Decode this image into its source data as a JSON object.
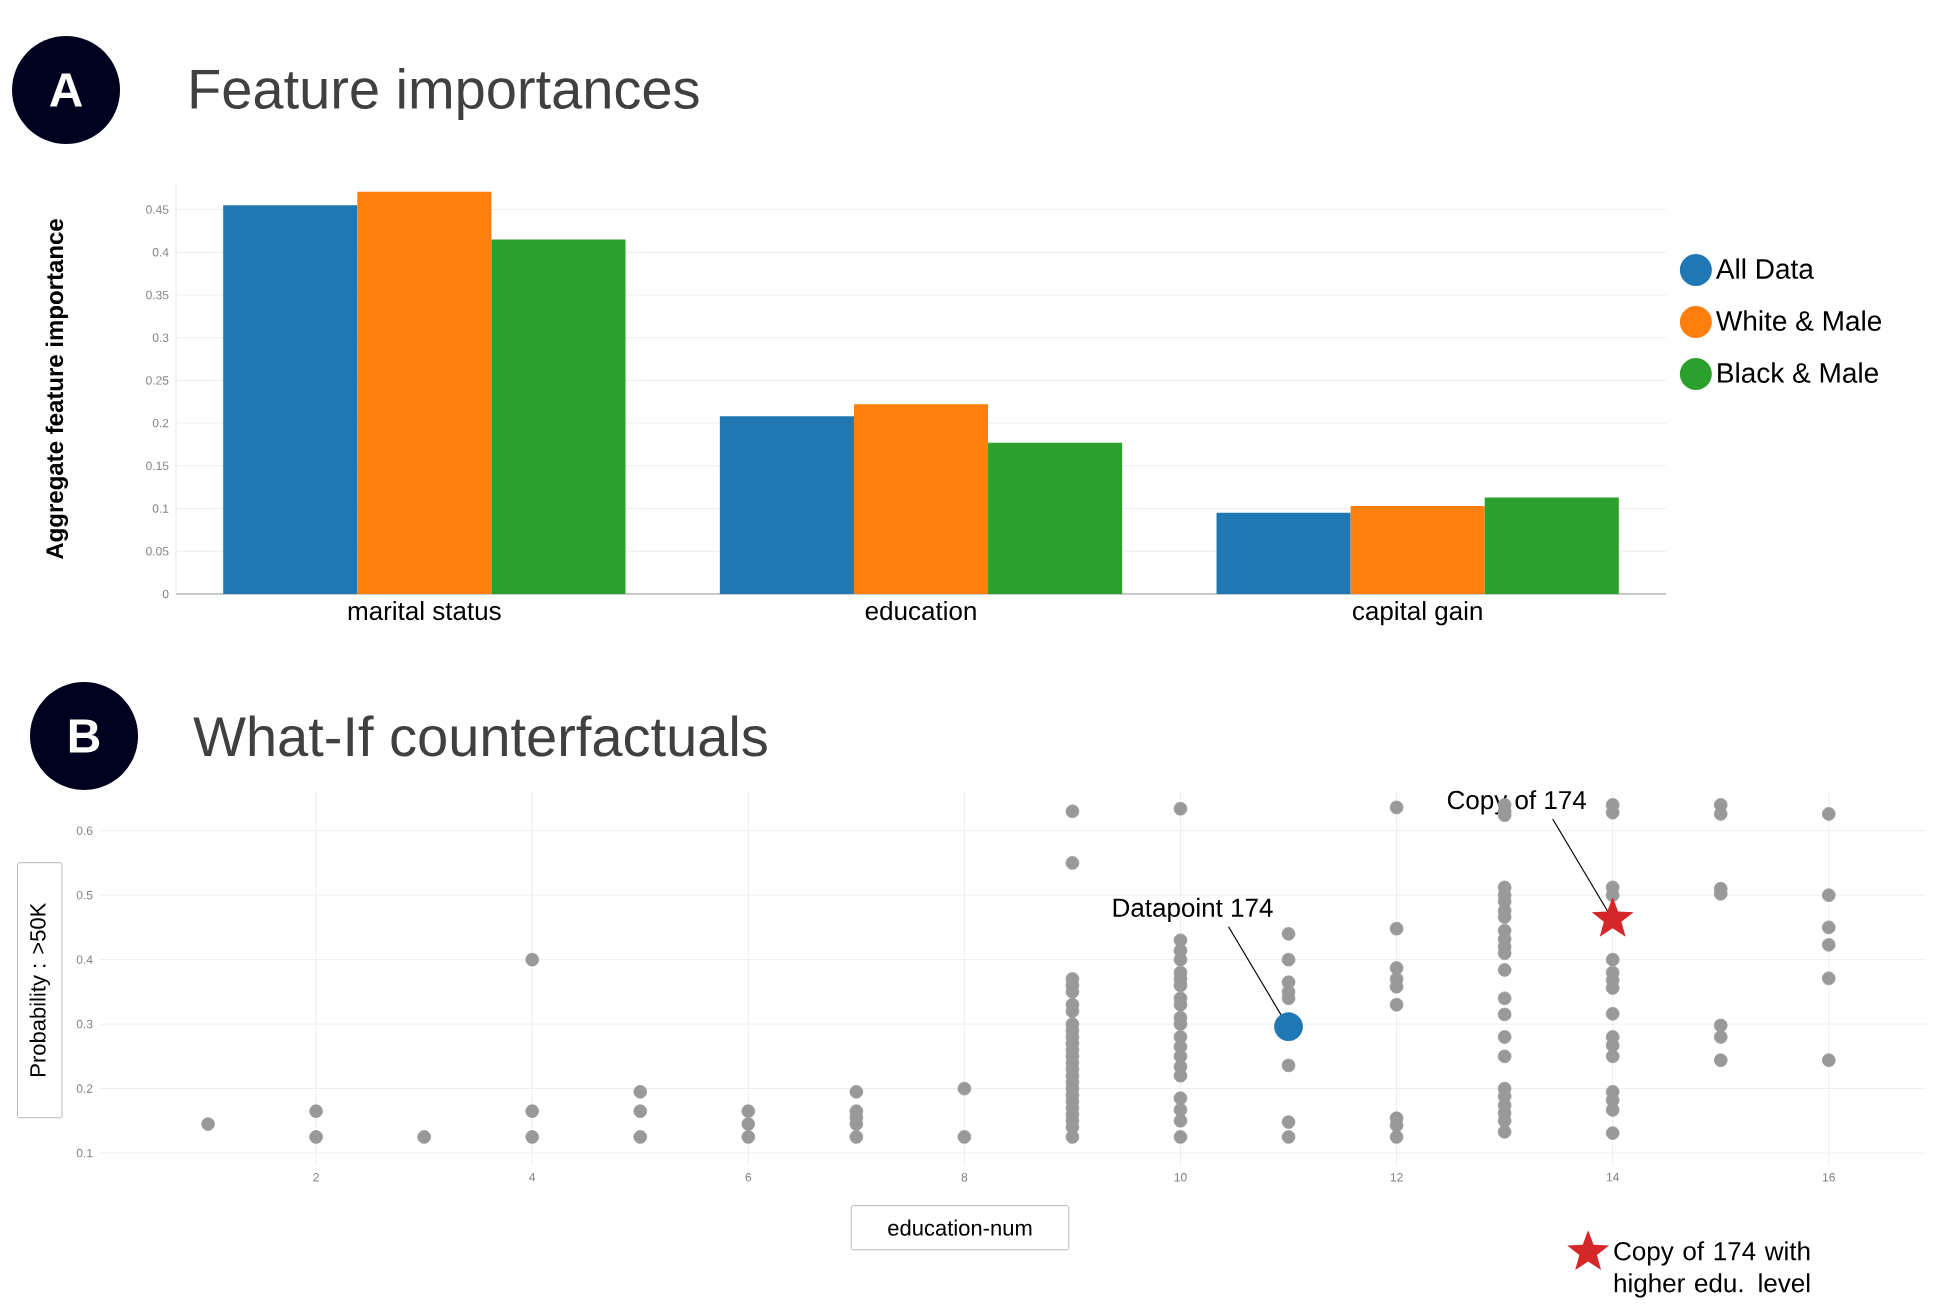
{
  "chart_data": [
    {
      "type": "bar",
      "title": "Feature importances",
      "ylabel": "Aggregate feature importance",
      "annotations": [
        "A"
      ],
      "categories": [
        "marital status",
        "education",
        "capital gain"
      ],
      "series": [
        {
          "name": "All Data",
          "color": "#1f77b4",
          "values": [
            0.455,
            0.208,
            0.095
          ]
        },
        {
          "name": "White & Male",
          "color": "#ff7f0e",
          "values": [
            0.471,
            0.222,
            0.103
          ]
        },
        {
          "name": "Black & Male",
          "color": "#2ca02c",
          "values": [
            0.415,
            0.177,
            0.113
          ]
        }
      ],
      "ylim": [
        0,
        0.48
      ],
      "yticks": [
        0,
        0.05,
        0.1,
        0.15,
        0.2,
        0.25,
        0.3,
        0.35,
        0.4,
        0.45
      ],
      "grid": "y",
      "legend": "right"
    },
    {
      "type": "scatter",
      "title": "What-If counterfactuals",
      "xlabel": "education-num",
      "ylabel": "Probability : >50K",
      "annotations": [
        "B",
        {
          "text": "Datapoint 174",
          "x": 11,
          "y": 0.296
        },
        {
          "text": "Copy of 174",
          "x": 14,
          "y": 0.463
        }
      ],
      "series": [
        {
          "color": "#999999",
          "marker": "circle",
          "x": [
            1,
            2,
            2,
            3,
            4,
            4,
            4,
            5,
            5,
            5,
            6,
            6,
            6,
            7,
            7,
            7,
            7,
            7,
            8,
            8,
            9,
            9,
            9,
            9,
            9,
            9,
            9,
            9,
            9,
            9,
            9,
            9,
            9,
            9,
            9,
            9,
            9,
            9,
            9,
            9,
            9,
            9,
            9,
            9,
            9,
            10,
            10,
            10,
            10,
            10,
            10,
            10,
            10,
            10,
            10,
            10,
            10,
            10,
            10,
            10,
            10,
            10,
            10,
            10,
            10,
            11,
            11,
            11,
            11,
            11,
            11,
            11,
            11,
            12,
            12,
            12,
            12,
            12,
            12,
            12,
            12,
            12,
            13,
            13,
            13,
            13,
            13,
            13,
            13,
            13,
            13,
            13,
            13,
            13,
            13,
            13,
            13,
            13,
            13,
            13,
            13,
            13,
            13,
            13,
            13,
            14,
            14,
            14,
            14,
            14,
            14,
            14,
            14,
            14,
            14,
            14,
            14,
            14,
            14,
            14,
            14,
            15,
            15,
            15,
            15,
            15,
            15,
            15,
            16,
            16,
            16,
            16,
            16,
            16
          ],
          "values": [
            0.145,
            0.165,
            0.125,
            0.125,
            0.4,
            0.165,
            0.125,
            0.195,
            0.165,
            0.125,
            0.165,
            0.145,
            0.125,
            0.195,
            0.165,
            0.155,
            0.145,
            0.125,
            0.2,
            0.125,
            0.63,
            0.55,
            0.37,
            0.36,
            0.35,
            0.33,
            0.32,
            0.3,
            0.29,
            0.28,
            0.27,
            0.26,
            0.25,
            0.24,
            0.23,
            0.22,
            0.21,
            0.2,
            0.19,
            0.18,
            0.17,
            0.16,
            0.15,
            0.14,
            0.125,
            0.634,
            0.43,
            0.414,
            0.4,
            0.38,
            0.37,
            0.36,
            0.34,
            0.33,
            0.31,
            0.3,
            0.28,
            0.265,
            0.25,
            0.234,
            0.22,
            0.185,
            0.167,
            0.15,
            0.125,
            0.44,
            0.4,
            0.365,
            0.35,
            0.34,
            0.236,
            0.148,
            0.125,
            0.636,
            0.448,
            0.387,
            0.37,
            0.358,
            0.33,
            0.154,
            0.143,
            0.125,
            0.64,
            0.63,
            0.624,
            0.512,
            0.5,
            0.49,
            0.476,
            0.466,
            0.445,
            0.432,
            0.42,
            0.41,
            0.384,
            0.34,
            0.315,
            0.28,
            0.25,
            0.2,
            0.188,
            0.174,
            0.162,
            0.15,
            0.133,
            0.64,
            0.628,
            0.512,
            0.5,
            0.4,
            0.38,
            0.368,
            0.356,
            0.316,
            0.28,
            0.267,
            0.25,
            0.195,
            0.182,
            0.167,
            0.131,
            0.64,
            0.626,
            0.51,
            0.502,
            0.298,
            0.28,
            0.244,
            0.626,
            0.5,
            0.45,
            0.423,
            0.371,
            0.244
          ]
        },
        {
          "color": "#1f77b4",
          "marker": "circle",
          "x": [
            11
          ],
          "values": [
            0.296
          ]
        },
        {
          "name": "Copy of 174  with higher edu. level",
          "color": "#d62728",
          "marker": "star",
          "x": [
            14
          ],
          "values": [
            0.463
          ]
        }
      ],
      "xlim": [
        0,
        16.9
      ],
      "ylim": [
        0.08,
        0.66
      ],
      "xticks": [
        2,
        4,
        6,
        8,
        10,
        12,
        14,
        16
      ],
      "yticks": [
        0.1,
        0.2,
        0.3,
        0.4,
        0.5,
        0.6
      ],
      "grid": true,
      "legend": "bottom right"
    }
  ]
}
